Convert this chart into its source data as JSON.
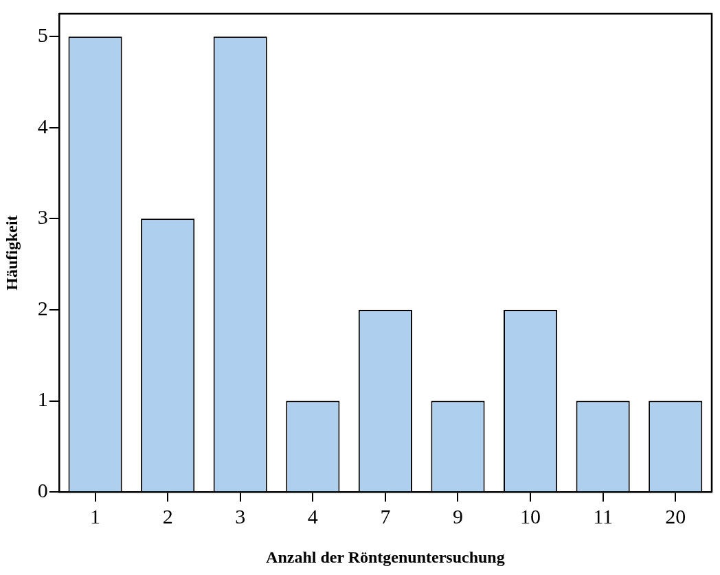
{
  "chart_data": {
    "type": "bar",
    "xlabel": "Anzahl der Röntgenuntersuchung",
    "ylabel": "Häufigkeit",
    "categories": [
      "1",
      "2",
      "3",
      "4",
      "7",
      "9",
      "10",
      "11",
      "20"
    ],
    "values": [
      5,
      3,
      5,
      1,
      2,
      1,
      2,
      1,
      1
    ],
    "color": "#aed0ee",
    "ylim": [
      0,
      5.25
    ],
    "yticks": [
      0,
      1,
      2,
      3,
      4,
      5
    ],
    "grid": false,
    "legend": false
  }
}
